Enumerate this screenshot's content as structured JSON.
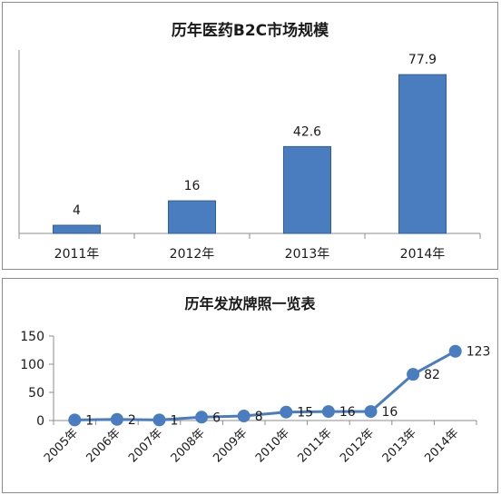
{
  "colors": {
    "bar": "#4a7dbf",
    "bar_border": "#2f5f99",
    "line": "#4a7dbf",
    "axis": "#8c8c8c"
  },
  "chart_data": [
    {
      "type": "bar",
      "title": "历年医药B2C市场规模",
      "categories": [
        "2011年",
        "2012年",
        "2013年",
        "2014年"
      ],
      "values": [
        4,
        16,
        42.6,
        77.9
      ],
      "data_labels": [
        "4",
        "16",
        "42.6",
        "77.9"
      ],
      "xlabel": "",
      "ylabel": "",
      "ylim": [
        0,
        90
      ],
      "grid": false,
      "y_axis_visible": false
    },
    {
      "type": "line",
      "title": "历年发放牌照一览表",
      "categories": [
        "2005年",
        "2006年",
        "2007年",
        "2008年",
        "2009年",
        "2010年",
        "2011年",
        "2012年",
        "2013年",
        "2014年"
      ],
      "values": [
        1,
        2,
        1,
        6,
        8,
        15,
        16,
        16,
        82,
        123
      ],
      "data_labels": [
        "1",
        "2",
        "1",
        "6",
        "8",
        "15",
        "16",
        "16",
        "82",
        "123"
      ],
      "y_ticks": [
        "0",
        "50",
        "100",
        "150"
      ],
      "xlabel": "",
      "ylabel": "",
      "ylim": [
        0,
        150
      ],
      "grid": false,
      "markers": true
    }
  ]
}
